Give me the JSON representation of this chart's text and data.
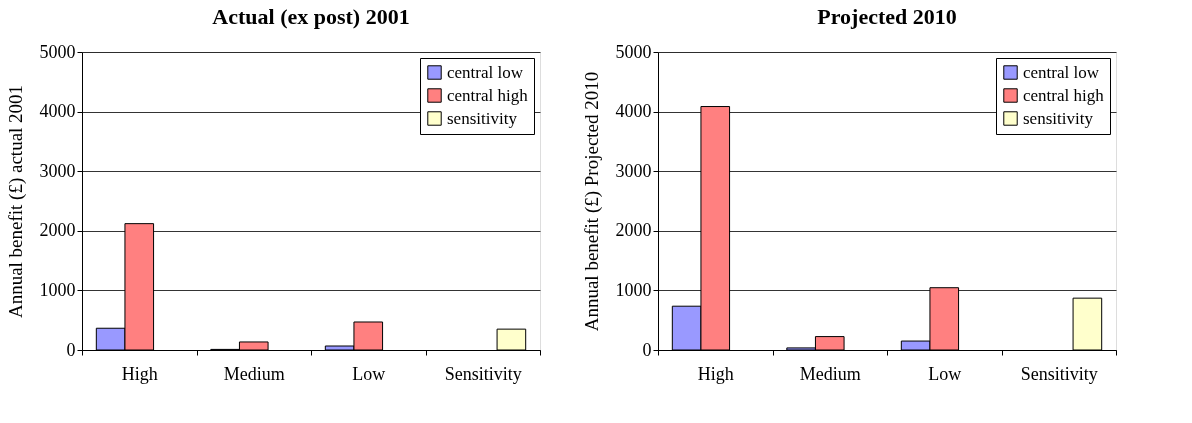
{
  "chart_data": [
    {
      "type": "bar",
      "title": "Actual (ex post) 2001",
      "ylabel": "Annual benefit (£) actual 2001",
      "categories": [
        "High",
        "Medium",
        "Low",
        "Sensitivity"
      ],
      "ylim": [
        0,
        5000
      ],
      "yticks": [
        0,
        1000,
        2000,
        3000,
        4000,
        5000
      ],
      "grid": "y",
      "legend": "top right",
      "series": [
        {
          "name": "central low",
          "color": "#9999ff",
          "values": [
            365,
            10,
            67,
            null
          ]
        },
        {
          "name": "central high",
          "color": "#ff8080",
          "values": [
            2120,
            135,
            470,
            null
          ]
        },
        {
          "name": "sensitivity",
          "color": "#ffffcc",
          "values": [
            null,
            null,
            null,
            350
          ]
        }
      ]
    },
    {
      "type": "bar",
      "title": "Projected 2010",
      "ylabel": "Annual benefit (£) Projected 2010",
      "categories": [
        "High",
        "Medium",
        "Low",
        "Sensitivity"
      ],
      "ylim": [
        0,
        5000
      ],
      "yticks": [
        0,
        1000,
        2000,
        3000,
        4000,
        5000
      ],
      "grid": "y",
      "legend": "top right",
      "series": [
        {
          "name": "central low",
          "color": "#9999ff",
          "values": [
            735,
            35,
            150,
            null
          ]
        },
        {
          "name": "central high",
          "color": "#ff8080",
          "values": [
            4085,
            225,
            1045,
            null
          ]
        },
        {
          "name": "sensitivity",
          "color": "#ffffcc",
          "values": [
            null,
            null,
            null,
            870
          ]
        }
      ]
    }
  ]
}
